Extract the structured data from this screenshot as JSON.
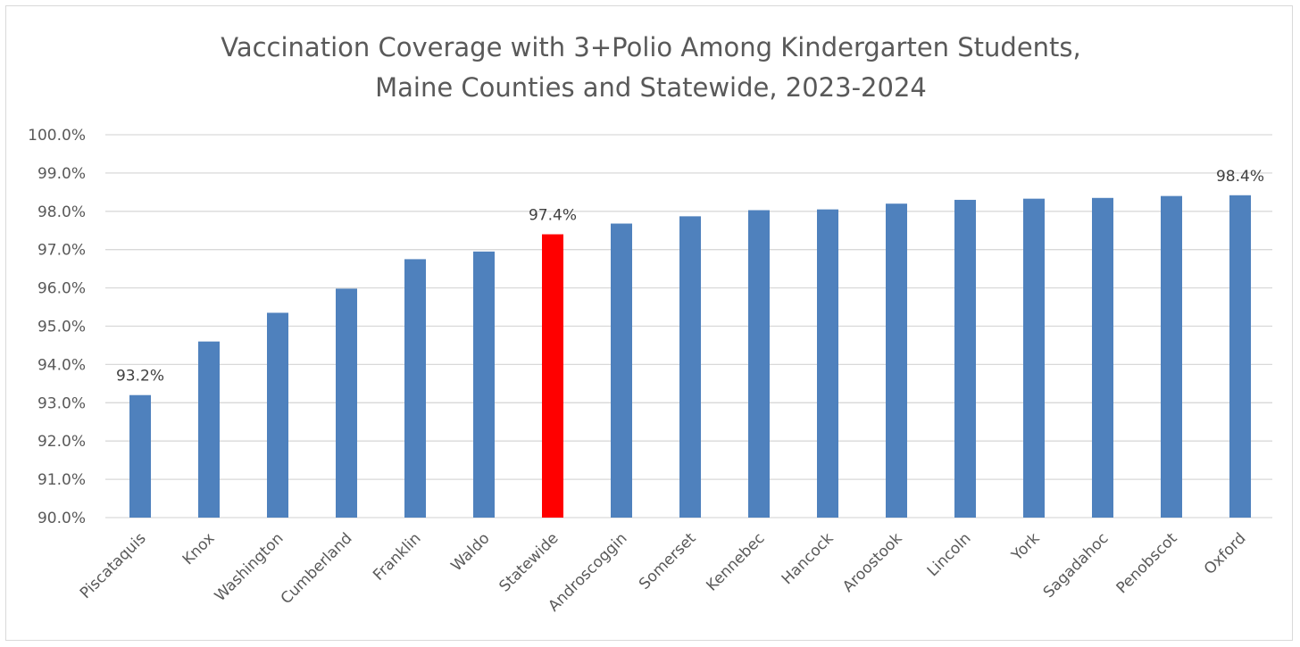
{
  "chart_data": {
    "type": "bar",
    "title_lines": [
      "Vaccination Coverage with 3+Polio Among Kindergarten Students,",
      "Maine Counties and Statewide, 2023-2024"
    ],
    "categories": [
      "Piscataquis",
      "Knox",
      "Washington",
      "Cumberland",
      "Franklin",
      "Waldo",
      "Statewide",
      "Androscoggin",
      "Somerset",
      "Kennebec",
      "Hancock",
      "Aroostook",
      "Lincoln",
      "York",
      "Sagadahoc",
      "Penobscot",
      "Oxford"
    ],
    "values": [
      93.2,
      94.6,
      95.35,
      95.98,
      96.75,
      96.95,
      97.4,
      97.68,
      97.87,
      98.03,
      98.05,
      98.2,
      98.3,
      98.33,
      98.35,
      98.4,
      98.42
    ],
    "ylim": [
      90,
      100
    ],
    "yticks": [
      "90.0%",
      "91.0%",
      "92.0%",
      "93.0%",
      "94.0%",
      "95.0%",
      "96.0%",
      "97.0%",
      "98.0%",
      "99.0%",
      "100.0%"
    ],
    "data_labels": {
      "Piscataquis": "93.2%",
      "Statewide": "97.4%",
      "Oxford": "98.4%"
    },
    "grid": true,
    "legend": "none",
    "colors": {
      "default": "#4f81bd",
      "highlight": "#ff0000"
    },
    "highlight_category": "Statewide"
  }
}
